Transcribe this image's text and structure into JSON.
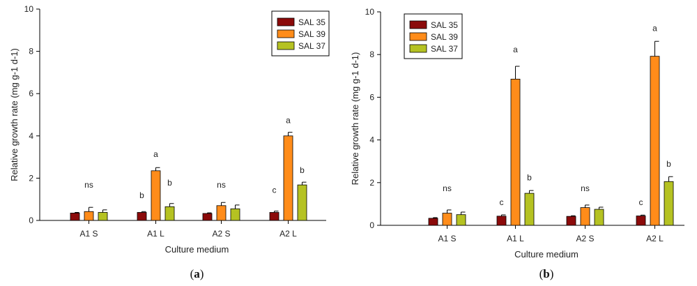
{
  "chart_data": [
    {
      "type": "bar",
      "caption": {
        "pre": "(",
        "letter": "a",
        "post": ")"
      },
      "categories": [
        "A1 S",
        "A1 L",
        "A2 S",
        "A2 L"
      ],
      "series": [
        {
          "name": "SAL 35",
          "color": "#8b0a0a",
          "values": [
            0.35,
            0.38,
            0.33,
            0.38
          ],
          "errors": [
            0.03,
            0.04,
            0.03,
            0.06
          ]
        },
        {
          "name": "SAL 39",
          "color": "#ff8c1a",
          "values": [
            0.42,
            2.35,
            0.7,
            4.0
          ],
          "errors": [
            0.2,
            0.15,
            0.15,
            0.17
          ]
        },
        {
          "name": "SAL 37",
          "color": "#b5c222",
          "values": [
            0.38,
            0.65,
            0.55,
            1.68
          ],
          "errors": [
            0.12,
            0.15,
            0.18,
            0.13
          ]
        }
      ],
      "significance": [
        {
          "category": "A1 S",
          "series": "SAL 39",
          "label": "ns",
          "y": 1.55
        },
        {
          "category": "A1 L",
          "series": "SAL 35",
          "label": "b",
          "y": 1.05
        },
        {
          "category": "A1 L",
          "series": "SAL 39",
          "label": "a",
          "y": 3.0
        },
        {
          "category": "A1 L",
          "series": "SAL 37",
          "label": "b",
          "y": 1.65
        },
        {
          "category": "A2 S",
          "series": "SAL 39",
          "label": "ns",
          "y": 1.55
        },
        {
          "category": "A2 L",
          "series": "SAL 35",
          "label": "c",
          "y": 1.3
        },
        {
          "category": "A2 L",
          "series": "SAL 39",
          "label": "a",
          "y": 4.6
        },
        {
          "category": "A2 L",
          "series": "SAL 37",
          "label": "b",
          "y": 2.25
        }
      ],
      "xlabel": "Culture medium",
      "ylabel": "Relative growth rate (mg g-1 d-1)",
      "ylim": [
        0,
        10
      ],
      "yticks": [
        0,
        2,
        4,
        6,
        8,
        10
      ],
      "legend_position": "top-right",
      "grid": false
    },
    {
      "type": "bar",
      "caption": {
        "pre": "(",
        "letter": "b",
        "post": ")"
      },
      "categories": [
        "A1 S",
        "A1 L",
        "A2 S",
        "A2 L"
      ],
      "series": [
        {
          "name": "SAL 35",
          "color": "#8b0a0a",
          "values": [
            0.33,
            0.43,
            0.42,
            0.44
          ],
          "errors": [
            0.03,
            0.06,
            0.03,
            0.04
          ]
        },
        {
          "name": "SAL 39",
          "color": "#ff8c1a",
          "values": [
            0.57,
            6.85,
            0.83,
            7.92
          ],
          "errors": [
            0.15,
            0.6,
            0.12,
            0.7
          ]
        },
        {
          "name": "SAL 37",
          "color": "#b5c222",
          "values": [
            0.5,
            1.5,
            0.75,
            2.05
          ],
          "errors": [
            0.12,
            0.13,
            0.1,
            0.23
          ]
        }
      ],
      "significance": [
        {
          "category": "A1 S",
          "series": "SAL 39",
          "label": "ns",
          "y": 1.6
        },
        {
          "category": "A1 L",
          "series": "SAL 35",
          "label": "c",
          "y": 0.95
        },
        {
          "category": "A1 L",
          "series": "SAL 39",
          "label": "a",
          "y": 8.1
        },
        {
          "category": "A1 L",
          "series": "SAL 37",
          "label": "b",
          "y": 2.1
        },
        {
          "category": "A2 S",
          "series": "SAL 39",
          "label": "ns",
          "y": 1.6
        },
        {
          "category": "A2 L",
          "series": "SAL 35",
          "label": "c",
          "y": 0.95
        },
        {
          "category": "A2 L",
          "series": "SAL 39",
          "label": "a",
          "y": 9.1
        },
        {
          "category": "A2 L",
          "series": "SAL 37",
          "label": "b",
          "y": 2.75
        }
      ],
      "xlabel": "Culture medium",
      "ylabel": "Relative growth rate (mg g-1 d-1)",
      "ylim": [
        0,
        10
      ],
      "yticks": [
        0,
        2,
        4,
        6,
        8,
        10
      ],
      "legend_position": "top-left",
      "grid": false
    }
  ]
}
